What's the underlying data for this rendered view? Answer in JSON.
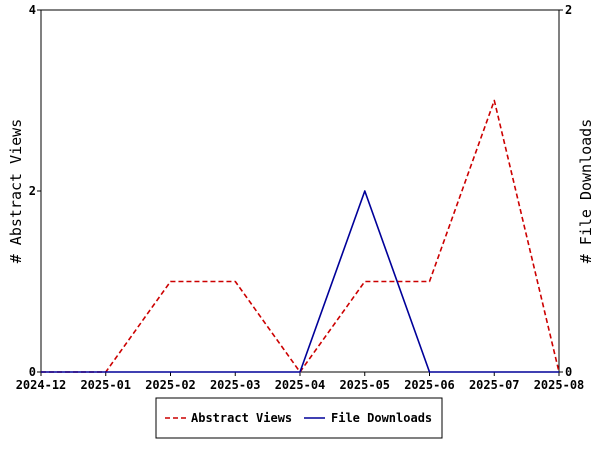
{
  "chart_data": {
    "type": "line",
    "title": "",
    "x": [
      "2024-12",
      "2025-01",
      "2025-02",
      "2025-03",
      "2025-04",
      "2025-05",
      "2025-06",
      "2025-07",
      "2025-08"
    ],
    "xlabel": "",
    "ylabel_left": "# Abstract Views",
    "ylabel_right": "# File Downloads",
    "ylim_left": [
      0,
      4
    ],
    "ylim_right": [
      0,
      2
    ],
    "yticks_left": [
      0,
      2,
      4
    ],
    "yticks_right": [
      0,
      2
    ],
    "grid": false,
    "legend_position": "bottom-center",
    "series": [
      {
        "name": "Abstract Views",
        "axis": "left",
        "style": "dashed",
        "color": "#cc0000",
        "values": [
          0,
          0,
          1,
          1,
          0,
          1,
          1,
          3,
          0
        ]
      },
      {
        "name": "File Downloads",
        "axis": "right",
        "style": "solid",
        "color": "#000099",
        "values": [
          0,
          0,
          0,
          0,
          0,
          1,
          0,
          0,
          0
        ]
      }
    ]
  }
}
